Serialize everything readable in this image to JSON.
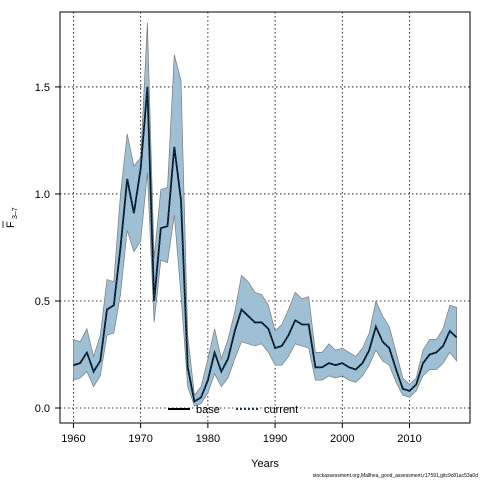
{
  "chart_data": {
    "type": "line",
    "xlabel": "Years",
    "ylabel_main": "F",
    "ylabel_sub": "3–7",
    "footnote": "stockassessment.org,Mallhea_good_assessment,r17591,gitc9c81ac53a0d",
    "xlim": [
      1958,
      2019
    ],
    "ylim": [
      -0.07,
      1.85
    ],
    "xticks": [
      1960,
      1970,
      1980,
      1990,
      2000,
      2010
    ],
    "yticks": [
      0.0,
      0.5,
      1.0,
      1.5
    ],
    "ytick_labels": [
      "0.0",
      "0.5",
      "1.0",
      "1.5"
    ],
    "grid": true,
    "legend_position": "bottom",
    "colors": {
      "band_fill": "#9fc0d4",
      "band_edge": "#7a7a7a",
      "current_line": "#0b3a5e",
      "base_line": "#000000"
    },
    "series": [
      {
        "name": "base",
        "style": "solid",
        "x": [
          1960,
          1961,
          1962,
          1963,
          1964,
          1965,
          1966,
          1967,
          1968,
          1969,
          1970,
          1971,
          1972,
          1973,
          1974,
          1975,
          1976,
          1977,
          1978,
          1979,
          1980,
          1981,
          1982,
          1983,
          1984,
          1985,
          1986,
          1987,
          1988,
          1989,
          1990,
          1991,
          1992,
          1993,
          1994,
          1995,
          1996,
          1997,
          1998,
          1999,
          2000,
          2001,
          2002,
          2003,
          2004,
          2005,
          2006,
          2007,
          2008,
          2009,
          2010,
          2011,
          2012,
          2013,
          2014,
          2015,
          2016,
          2017
        ],
        "values": [
          0.2,
          0.21,
          0.26,
          0.17,
          0.22,
          0.46,
          0.48,
          0.75,
          1.07,
          0.91,
          1.12,
          1.5,
          0.5,
          0.84,
          0.85,
          1.22,
          0.97,
          0.19,
          0.03,
          0.05,
          0.13,
          0.26,
          0.17,
          0.23,
          0.36,
          0.46,
          0.43,
          0.4,
          0.4,
          0.37,
          0.28,
          0.29,
          0.34,
          0.41,
          0.39,
          0.39,
          0.19,
          0.19,
          0.21,
          0.2,
          0.21,
          0.19,
          0.18,
          0.21,
          0.27,
          0.38,
          0.31,
          0.28,
          0.18,
          0.09,
          0.08,
          0.11,
          0.21,
          0.25,
          0.26,
          0.29,
          0.36,
          0.33
        ]
      },
      {
        "name": "current",
        "style": "dotted",
        "x": [
          1960,
          1961,
          1962,
          1963,
          1964,
          1965,
          1966,
          1967,
          1968,
          1969,
          1970,
          1971,
          1972,
          1973,
          1974,
          1975,
          1976,
          1977,
          1978,
          1979,
          1980,
          1981,
          1982,
          1983,
          1984,
          1985,
          1986,
          1987,
          1988,
          1989,
          1990,
          1991,
          1992,
          1993,
          1994,
          1995,
          1996,
          1997,
          1998,
          1999,
          2000,
          2001,
          2002,
          2003,
          2004,
          2005,
          2006,
          2007,
          2008,
          2009,
          2010,
          2011,
          2012,
          2013,
          2014,
          2015,
          2016,
          2017
        ],
        "values": [
          0.2,
          0.21,
          0.26,
          0.17,
          0.22,
          0.46,
          0.48,
          0.75,
          1.07,
          0.91,
          1.12,
          1.5,
          0.5,
          0.84,
          0.85,
          1.22,
          0.97,
          0.19,
          0.03,
          0.05,
          0.13,
          0.26,
          0.17,
          0.23,
          0.36,
          0.46,
          0.43,
          0.4,
          0.4,
          0.37,
          0.28,
          0.29,
          0.34,
          0.41,
          0.39,
          0.39,
          0.19,
          0.19,
          0.21,
          0.2,
          0.21,
          0.19,
          0.18,
          0.21,
          0.27,
          0.38,
          0.31,
          0.28,
          0.18,
          0.09,
          0.08,
          0.11,
          0.21,
          0.25,
          0.26,
          0.29,
          0.36,
          0.33
        ]
      }
    ],
    "confidence_band": {
      "x": [
        1960,
        1961,
        1962,
        1963,
        1964,
        1965,
        1966,
        1967,
        1968,
        1969,
        1970,
        1971,
        1972,
        1973,
        1974,
        1975,
        1976,
        1977,
        1978,
        1979,
        1980,
        1981,
        1982,
        1983,
        1984,
        1985,
        1986,
        1987,
        1988,
        1989,
        1990,
        1991,
        1992,
        1993,
        1994,
        1995,
        1996,
        1997,
        1998,
        1999,
        2000,
        2001,
        2002,
        2003,
        2004,
        2005,
        2006,
        2007,
        2008,
        2009,
        2010,
        2011,
        2012,
        2013,
        2014,
        2015,
        2016,
        2017
      ],
      "lower": [
        0.13,
        0.14,
        0.17,
        0.1,
        0.15,
        0.34,
        0.35,
        0.53,
        0.83,
        0.73,
        0.78,
        1.1,
        0.4,
        0.69,
        0.68,
        0.9,
        0.53,
        0.1,
        0.01,
        0.02,
        0.07,
        0.16,
        0.1,
        0.14,
        0.23,
        0.31,
        0.3,
        0.29,
        0.3,
        0.26,
        0.2,
        0.2,
        0.24,
        0.3,
        0.29,
        0.28,
        0.13,
        0.13,
        0.15,
        0.14,
        0.15,
        0.13,
        0.12,
        0.15,
        0.2,
        0.27,
        0.22,
        0.2,
        0.12,
        0.06,
        0.05,
        0.08,
        0.15,
        0.18,
        0.18,
        0.21,
        0.26,
        0.22
      ],
      "upper": [
        0.32,
        0.31,
        0.37,
        0.24,
        0.34,
        0.6,
        0.59,
        1.0,
        1.28,
        1.13,
        1.17,
        1.8,
        0.7,
        1.02,
        1.03,
        1.65,
        1.53,
        0.34,
        0.06,
        0.1,
        0.23,
        0.37,
        0.23,
        0.32,
        0.45,
        0.62,
        0.59,
        0.54,
        0.53,
        0.48,
        0.36,
        0.39,
        0.46,
        0.54,
        0.51,
        0.52,
        0.26,
        0.26,
        0.3,
        0.27,
        0.28,
        0.26,
        0.24,
        0.28,
        0.35,
        0.5,
        0.43,
        0.38,
        0.26,
        0.14,
        0.11,
        0.14,
        0.27,
        0.32,
        0.32,
        0.37,
        0.48,
        0.47
      ]
    }
  }
}
